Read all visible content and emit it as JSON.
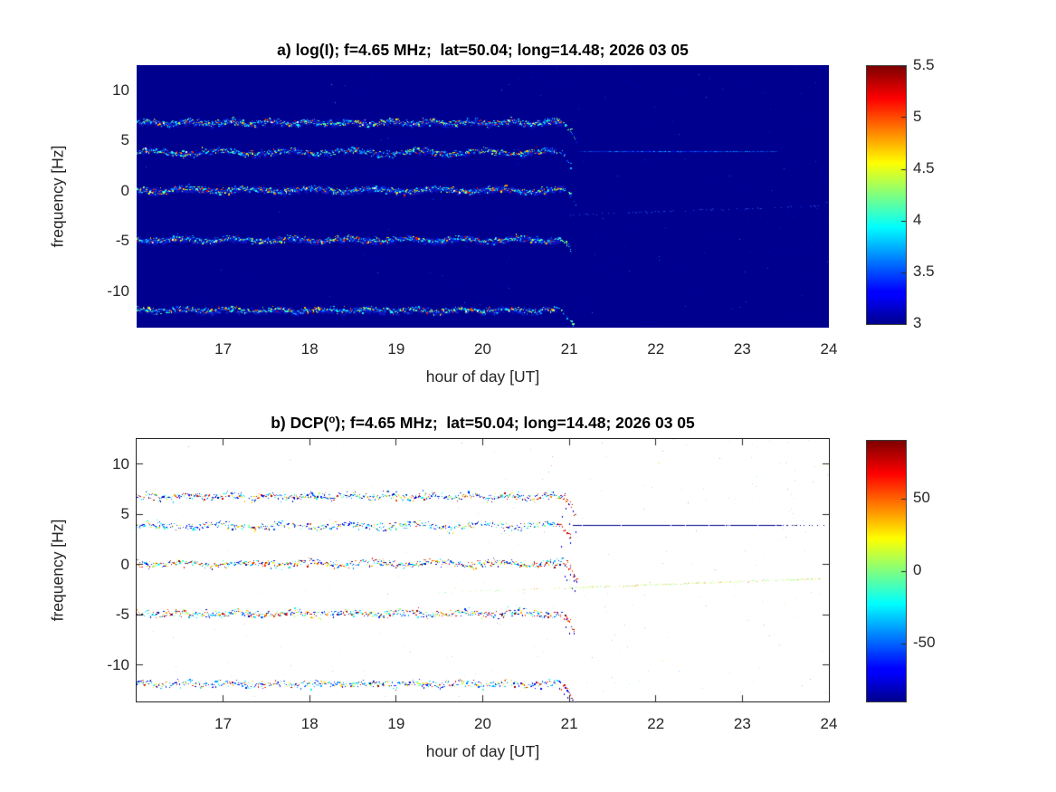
{
  "chart_data": [
    {
      "id": "a",
      "type": "heatmap",
      "style": "intensity",
      "title_prefix": "a) log(I); f=4.65 MHz;  lat=50.04; long=14.48; 2026 03 05",
      "title_sup": "",
      "title_suffix": "",
      "xlabel": "hour of day [UT]",
      "ylabel": "frequency [Hz]",
      "xlim": [
        16,
        24
      ],
      "ylim": [
        -13.6,
        12.5
      ],
      "xticks": [
        17,
        18,
        19,
        20,
        21,
        22,
        23,
        24
      ],
      "yticks": [
        10,
        5,
        0,
        -5,
        -10
      ],
      "colormap": "jet",
      "clim": [
        3,
        5.5
      ],
      "colorbar_ticks": [
        3,
        3.5,
        4,
        4.5,
        5,
        5.5
      ],
      "background_color": "#00008F",
      "traces": [
        {
          "freq": 6.8,
          "t_start": 16,
          "t_end": 21.08,
          "droop_hz": 1.8,
          "weight": 1.0,
          "dcp_mix": 0.5
        },
        {
          "freq": 3.85,
          "t_start": 16,
          "t_end": 21.02,
          "droop_hz": 1.2,
          "weight": 0.55,
          "dcp_mix": 0.68
        },
        {
          "freq": 0.1,
          "t_start": 16,
          "t_end": 21.1,
          "droop_hz": 2.2,
          "weight": 1.2,
          "dcp_mix": 0.45
        },
        {
          "freq": -4.85,
          "t_start": 16,
          "t_end": 21.06,
          "droop_hz": 2.0,
          "weight": 1.1,
          "dcp_mix": 0.45
        },
        {
          "freq": -11.85,
          "t_start": 16,
          "t_end": 21.05,
          "droop_hz": 1.6,
          "weight": 0.8,
          "dcp_mix": 0.6
        }
      ],
      "persistent_line": {
        "freq": 3.95,
        "t_start": 21.12,
        "t_end": 23.4
      },
      "drift_line": {
        "t_start": 21.0,
        "f_start": -2.4,
        "t_end": 23.9,
        "f_end": -1.5
      }
    },
    {
      "id": "b",
      "type": "heatmap",
      "style": "dcp",
      "title_prefix": "b) DCP(",
      "title_sup": "o",
      "title_suffix": "); f=4.65 MHz;  lat=50.04; long=14.48; 2026 03 05",
      "xlabel": "hour of day [UT]",
      "ylabel": "frequency [Hz]",
      "xlim": [
        16,
        24
      ],
      "ylim": [
        -13.6,
        12.5
      ],
      "xticks": [
        17,
        18,
        19,
        20,
        21,
        22,
        23,
        24
      ],
      "yticks": [
        10,
        5,
        0,
        -5,
        -10
      ],
      "colormap": "jet",
      "clim": [
        -90,
        90
      ],
      "colorbar_ticks": [
        -50,
        0,
        50
      ],
      "background_color": "#FFFFFF",
      "traces": [
        {
          "freq": 6.8,
          "t_start": 16,
          "t_end": 21.08,
          "droop_hz": 1.8,
          "weight": 1.0,
          "dcp_mix": 0.5
        },
        {
          "freq": 3.85,
          "t_start": 16,
          "t_end": 21.02,
          "droop_hz": 1.2,
          "weight": 0.55,
          "dcp_mix": 0.68
        },
        {
          "freq": 0.1,
          "t_start": 16,
          "t_end": 21.1,
          "droop_hz": 2.2,
          "weight": 1.2,
          "dcp_mix": 0.45
        },
        {
          "freq": -4.85,
          "t_start": 16,
          "t_end": 21.06,
          "droop_hz": 2.0,
          "weight": 1.1,
          "dcp_mix": 0.45
        },
        {
          "freq": -11.85,
          "t_start": 16,
          "t_end": 21.05,
          "droop_hz": 1.6,
          "weight": 0.8,
          "dcp_mix": 0.6
        }
      ],
      "persistent_line": {
        "freq": 3.95,
        "t_start": 21.05,
        "t_end": 23.95
      },
      "drift_line": {
        "t_start": 19.4,
        "f_start": -2.8,
        "t_end": 23.9,
        "f_end": -1.4
      }
    }
  ]
}
